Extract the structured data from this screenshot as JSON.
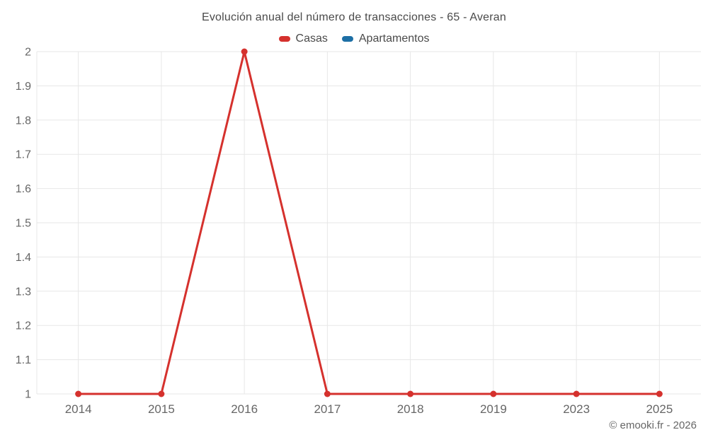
{
  "title": "Evolución anual del número de transacciones - 65 - Averan",
  "legend": [
    {
      "label": "Casas",
      "color": "#d5312d"
    },
    {
      "label": "Apartamentos",
      "color": "#1d6fa5"
    }
  ],
  "footer": "© emooki.fr - 2026",
  "colors": {
    "grid": "#e7e7e7",
    "axis_label": "#666666",
    "title_text": "#4a4a4a"
  },
  "chart_data": {
    "type": "line",
    "title": "Evolución anual del número de transacciones - 65 - Averan",
    "categories": [
      "2014",
      "2015",
      "2016",
      "2017",
      "2018",
      "2019",
      "2023",
      "2025"
    ],
    "series": [
      {
        "name": "Casas",
        "color": "#d5312d",
        "values": [
          1,
          1,
          2,
          1,
          1,
          1,
          1,
          1
        ]
      },
      {
        "name": "Apartamentos",
        "color": "#1d6fa5",
        "values": []
      }
    ],
    "xlabel": "",
    "ylabel": "",
    "ylim": [
      1,
      2
    ],
    "ytick_step": 0.1,
    "grid": true,
    "legend_position": "top",
    "marker": "circle"
  }
}
